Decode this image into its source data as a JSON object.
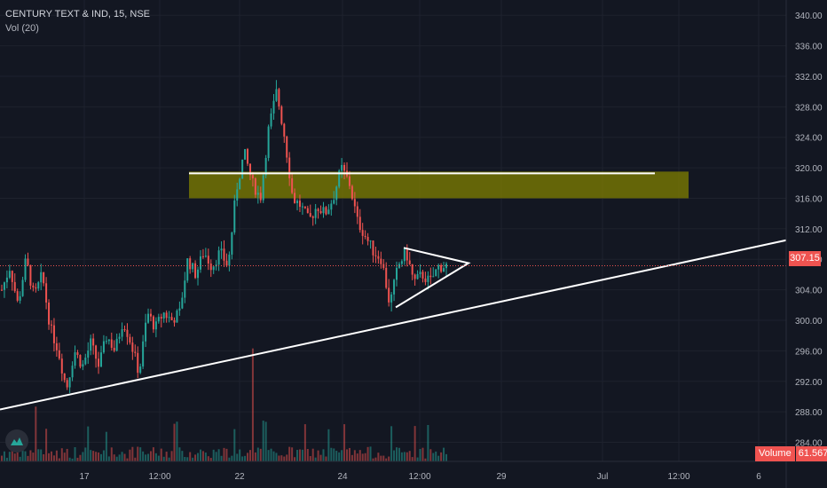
{
  "legend": {
    "symbol": "CENTURY TEXT & IND, 15, NSE",
    "indicator": "Vol (20)"
  },
  "price_tag": "307.15",
  "volume_tag": {
    "label": "Volume",
    "value": "61.567K"
  },
  "colors": {
    "up": "#26a69a",
    "down": "#ef5350",
    "zone": "#808000",
    "background": "#131722"
  },
  "chart_data": {
    "type": "candlestick",
    "y_ticks": [
      284,
      288,
      292,
      296,
      300,
      304,
      308,
      312,
      316,
      320,
      324,
      328,
      332,
      336,
      340
    ],
    "y_tick_labels": [
      "284.00",
      "288.00",
      "292.00",
      "296.00",
      "300.00",
      "304.00",
      "308.00",
      "312.00",
      "316.00",
      "320.00",
      "324.00",
      "328.00",
      "332.00",
      "336.00",
      "340.00"
    ],
    "ylim": [
      281.5,
      342
    ],
    "x_tick_labels": [
      "17",
      "12:00",
      "22",
      "24",
      "12:00",
      "29",
      "Jul",
      "12:00",
      "6"
    ],
    "last_price": 307.15,
    "price_path": [
      304,
      307,
      302,
      308,
      303,
      306,
      299,
      296,
      291,
      296,
      294,
      297,
      294,
      298,
      296,
      300,
      297,
      293,
      301,
      299,
      301,
      300,
      301,
      308,
      306,
      309,
      307,
      309,
      307,
      317,
      322,
      318,
      316,
      325,
      330,
      324,
      316,
      315,
      313,
      315,
      314,
      316,
      320,
      318,
      313,
      311,
      309,
      308,
      302,
      307,
      309,
      305,
      306,
      305,
      307,
      307.15
    ],
    "zone": {
      "low": 316,
      "high": 319.5,
      "start_index": 16,
      "end": "29"
    },
    "resistance": 319.5,
    "trendline": {
      "from": {
        "x": "15",
        "y": 288.3
      },
      "to": {
        "x": "6",
        "y": 310.5
      }
    },
    "triangle": {
      "upper": [
        309.5,
        307.5
      ],
      "lower": [
        301.7,
        307.5
      ]
    },
    "volume_peak": "61.567K"
  }
}
